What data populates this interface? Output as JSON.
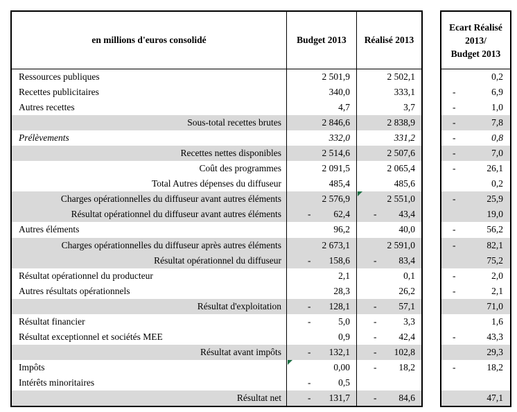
{
  "header": {
    "label_col": "en millions d'euros consolidé",
    "budget_col": "Budget 2013",
    "realise_col": "Réalisé 2013",
    "ecart_lines": [
      "Ecart Réalisé",
      "2013/",
      "Budget 2013"
    ]
  },
  "colors": {
    "shaded_row": "#d9d9d9",
    "border": "#000000",
    "flag_indicator_green": "#1e7145",
    "text": "#000000"
  },
  "rows": [
    {
      "label": "Ressources publiques",
      "align": "left",
      "italic": false,
      "shaded": false,
      "budget_neg": "",
      "budget": "2 501,9",
      "realise_neg": "",
      "realise": "2 502,1",
      "ecart_neg": "",
      "ecart": "0,2",
      "flag": ""
    },
    {
      "label": "Recettes publicitaires",
      "align": "left",
      "italic": false,
      "shaded": false,
      "budget_neg": "",
      "budget": "340,0",
      "realise_neg": "",
      "realise": "333,1",
      "ecart_neg": "-",
      "ecart": "6,9",
      "flag": ""
    },
    {
      "label": "Autres recettes",
      "align": "left",
      "italic": false,
      "shaded": false,
      "budget_neg": "",
      "budget": "4,7",
      "realise_neg": "",
      "realise": "3,7",
      "ecart_neg": "-",
      "ecart": "1,0",
      "flag": ""
    },
    {
      "label": "Sous-total recettes brutes",
      "align": "right",
      "italic": false,
      "shaded": true,
      "budget_neg": "",
      "budget": "2 846,6",
      "realise_neg": "",
      "realise": "2 838,9",
      "ecart_neg": "-",
      "ecart": "7,8",
      "flag": ""
    },
    {
      "label": "Prélèvements",
      "align": "left",
      "italic": true,
      "shaded": false,
      "budget_neg": "",
      "budget": "332,0",
      "realise_neg": "",
      "realise": "331,2",
      "ecart_neg": "-",
      "ecart": "0,8",
      "flag": ""
    },
    {
      "label": "Recettes nettes disponibles",
      "align": "right",
      "italic": false,
      "shaded": true,
      "budget_neg": "",
      "budget": "2 514,6",
      "realise_neg": "",
      "realise": "2 507,6",
      "ecart_neg": "-",
      "ecart": "7,0",
      "flag": ""
    },
    {
      "label": "Coût des programmes",
      "align": "right",
      "italic": false,
      "shaded": false,
      "budget_neg": "",
      "budget": "2 091,5",
      "realise_neg": "",
      "realise": "2 065,4",
      "ecart_neg": "-",
      "ecart": "26,1",
      "flag": ""
    },
    {
      "label": "Total Autres dépenses du diffuseur",
      "align": "right",
      "italic": false,
      "shaded": false,
      "budget_neg": "",
      "budget": "485,4",
      "realise_neg": "",
      "realise": "485,6",
      "ecart_neg": "",
      "ecart": "0,2",
      "flag": ""
    },
    {
      "label": "Charges opérationnelles du diffuseur avant autres éléments",
      "align": "right",
      "italic": false,
      "shaded": true,
      "budget_neg": "",
      "budget": "2 576,9",
      "realise_neg": "",
      "realise": "2 551,0",
      "ecart_neg": "-",
      "ecart": "25,9",
      "flag": "realise"
    },
    {
      "label": "Résultat opérationnel du diffuseur avant autres éléments",
      "align": "right",
      "italic": false,
      "shaded": true,
      "budget_neg": "-",
      "budget": "62,4",
      "realise_neg": "-",
      "realise": "43,4",
      "ecart_neg": "",
      "ecart": "19,0",
      "flag": ""
    },
    {
      "label": "Autres éléments",
      "align": "left",
      "italic": false,
      "shaded": false,
      "budget_neg": "",
      "budget": "96,2",
      "realise_neg": "",
      "realise": "40,0",
      "ecart_neg": "-",
      "ecart": "56,2",
      "flag": ""
    },
    {
      "label": "Charges opérationnelles du diffuseur après autres éléments",
      "align": "right",
      "italic": false,
      "shaded": true,
      "budget_neg": "",
      "budget": "2 673,1",
      "realise_neg": "",
      "realise": "2 591,0",
      "ecart_neg": "-",
      "ecart": "82,1",
      "flag": ""
    },
    {
      "label": "Résultat opérationnel du diffuseur",
      "align": "right",
      "italic": false,
      "shaded": true,
      "budget_neg": "-",
      "budget": "158,6",
      "realise_neg": "-",
      "realise": "83,4",
      "ecart_neg": "",
      "ecart": "75,2",
      "flag": ""
    },
    {
      "label": "Résultat opérationnel du producteur",
      "align": "left",
      "italic": false,
      "shaded": false,
      "budget_neg": "",
      "budget": "2,1",
      "realise_neg": "",
      "realise": "0,1",
      "ecart_neg": "-",
      "ecart": "2,0",
      "flag": ""
    },
    {
      "label": "Autres résultats opérationnels",
      "align": "left",
      "italic": false,
      "shaded": false,
      "budget_neg": "",
      "budget": "28,3",
      "realise_neg": "",
      "realise": "26,2",
      "ecart_neg": "-",
      "ecart": "2,1",
      "flag": ""
    },
    {
      "label": "Résultat d'exploitation",
      "align": "right",
      "italic": false,
      "shaded": true,
      "budget_neg": "-",
      "budget": "128,1",
      "realise_neg": "-",
      "realise": "57,1",
      "ecart_neg": "",
      "ecart": "71,0",
      "flag": ""
    },
    {
      "label": "Résultat financier",
      "align": "left",
      "italic": false,
      "shaded": false,
      "budget_neg": "-",
      "budget": "5,0",
      "realise_neg": "-",
      "realise": "3,3",
      "ecart_neg": "",
      "ecart": "1,6",
      "flag": ""
    },
    {
      "label": "Résultat exceptionnel et sociétés MEE",
      "align": "left",
      "italic": false,
      "shaded": false,
      "budget_neg": "",
      "budget": "0,9",
      "realise_neg": "-",
      "realise": "42,4",
      "ecart_neg": "-",
      "ecart": "43,3",
      "flag": ""
    },
    {
      "label": "Résultat avant impôts",
      "align": "right",
      "italic": false,
      "shaded": true,
      "budget_neg": "-",
      "budget": "132,1",
      "realise_neg": "-",
      "realise": "102,8",
      "ecart_neg": "",
      "ecart": "29,3",
      "flag": ""
    },
    {
      "label": "Impôts",
      "align": "left",
      "italic": false,
      "shaded": false,
      "budget_neg": "",
      "budget": "0,00",
      "realise_neg": "-",
      "realise": "18,2",
      "ecart_neg": "-",
      "ecart": "18,2",
      "flag": "budget"
    },
    {
      "label": "Intérêts minoritaires",
      "align": "left",
      "italic": false,
      "shaded": false,
      "budget_neg": "-",
      "budget": "0,5",
      "realise_neg": "",
      "realise": "",
      "ecart_neg": "",
      "ecart": "",
      "flag": ""
    },
    {
      "label": "Résultat net",
      "align": "right",
      "italic": false,
      "shaded": true,
      "budget_neg": "-",
      "budget": "131,7",
      "realise_neg": "-",
      "realise": "84,6",
      "ecart_neg": "",
      "ecart": "47,1",
      "flag": ""
    }
  ]
}
